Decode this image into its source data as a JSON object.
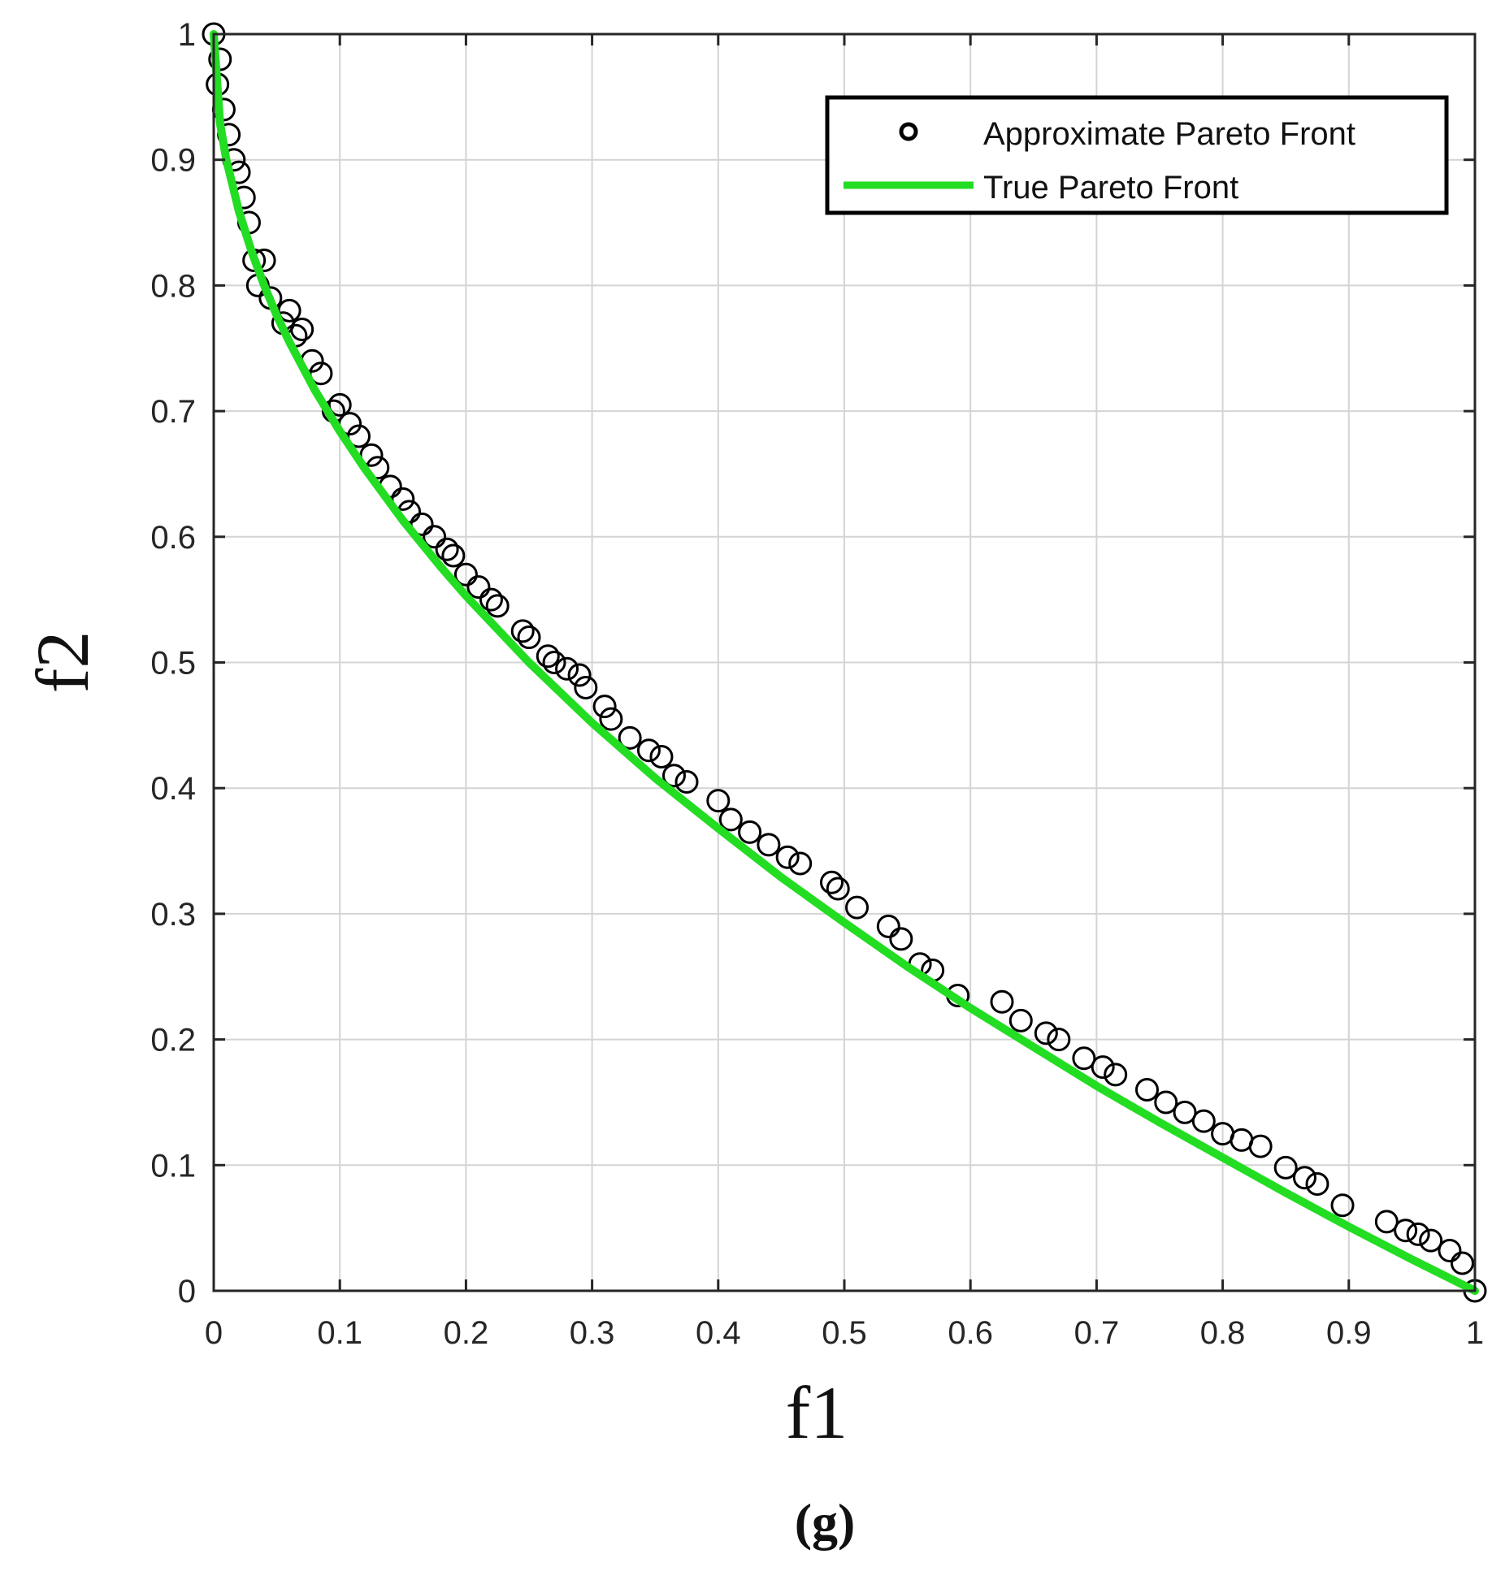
{
  "chart_data": {
    "type": "scatter",
    "title": "",
    "panel_label": "(g)",
    "xlabel": "f1",
    "ylabel": "f2",
    "xlim": [
      0,
      1
    ],
    "ylim": [
      0,
      1
    ],
    "xticks": [
      "0",
      "0.1",
      "0.2",
      "0.3",
      "0.4",
      "0.5",
      "0.6",
      "0.7",
      "0.8",
      "0.9",
      "1"
    ],
    "yticks": [
      "0",
      "0.1",
      "0.2",
      "0.3",
      "0.4",
      "0.5",
      "0.6",
      "0.7",
      "0.8",
      "0.9",
      "1"
    ],
    "grid": true,
    "legend_placement": "top-right",
    "series": [
      {
        "name": "Approximate Pareto Front",
        "kind": "scatter",
        "marker": "open-circle",
        "color": "#000000",
        "x": [
          0.0,
          0.003,
          0.005,
          0.008,
          0.012,
          0.016,
          0.02,
          0.024,
          0.028,
          0.032,
          0.035,
          0.04,
          0.045,
          0.055,
          0.06,
          0.065,
          0.07,
          0.078,
          0.085,
          0.095,
          0.1,
          0.108,
          0.115,
          0.125,
          0.13,
          0.14,
          0.15,
          0.155,
          0.165,
          0.175,
          0.185,
          0.19,
          0.2,
          0.21,
          0.22,
          0.225,
          0.245,
          0.25,
          0.265,
          0.27,
          0.28,
          0.29,
          0.295,
          0.31,
          0.315,
          0.33,
          0.345,
          0.355,
          0.365,
          0.375,
          0.4,
          0.41,
          0.425,
          0.44,
          0.455,
          0.465,
          0.49,
          0.495,
          0.51,
          0.535,
          0.545,
          0.56,
          0.57,
          0.59,
          0.625,
          0.64,
          0.66,
          0.67,
          0.69,
          0.705,
          0.715,
          0.74,
          0.755,
          0.77,
          0.785,
          0.8,
          0.815,
          0.83,
          0.85,
          0.865,
          0.875,
          0.895,
          0.93,
          0.945,
          0.955,
          0.965,
          0.98,
          0.99,
          1.0
        ],
        "y": [
          1.0,
          0.96,
          0.98,
          0.94,
          0.92,
          0.9,
          0.89,
          0.87,
          0.85,
          0.82,
          0.8,
          0.82,
          0.79,
          0.77,
          0.78,
          0.76,
          0.765,
          0.74,
          0.73,
          0.7,
          0.705,
          0.69,
          0.68,
          0.665,
          0.655,
          0.64,
          0.63,
          0.62,
          0.61,
          0.6,
          0.59,
          0.585,
          0.57,
          0.56,
          0.55,
          0.545,
          0.525,
          0.52,
          0.505,
          0.5,
          0.495,
          0.49,
          0.48,
          0.465,
          0.455,
          0.44,
          0.43,
          0.425,
          0.41,
          0.405,
          0.39,
          0.375,
          0.365,
          0.355,
          0.345,
          0.34,
          0.325,
          0.32,
          0.305,
          0.29,
          0.28,
          0.26,
          0.255,
          0.235,
          0.23,
          0.215,
          0.205,
          0.2,
          0.185,
          0.178,
          0.172,
          0.16,
          0.15,
          0.142,
          0.135,
          0.125,
          0.12,
          0.115,
          0.098,
          0.09,
          0.085,
          0.068,
          0.055,
          0.048,
          0.045,
          0.04,
          0.032,
          0.022,
          0.0
        ]
      },
      {
        "name": "True Pareto Front",
        "kind": "line",
        "color": "#22dd22",
        "x": [
          0.0,
          0.005,
          0.01,
          0.02,
          0.03,
          0.04,
          0.05,
          0.06,
          0.08,
          0.1,
          0.12,
          0.15,
          0.18,
          0.2,
          0.25,
          0.3,
          0.35,
          0.4,
          0.45,
          0.5,
          0.55,
          0.6,
          0.65,
          0.7,
          0.75,
          0.8,
          0.85,
          0.9,
          0.95,
          1.0
        ],
        "y": [
          1.0,
          0.929,
          0.9,
          0.859,
          0.827,
          0.8,
          0.776,
          0.755,
          0.717,
          0.684,
          0.654,
          0.613,
          0.576,
          0.553,
          0.5,
          0.452,
          0.408,
          0.368,
          0.329,
          0.293,
          0.258,
          0.225,
          0.194,
          0.163,
          0.134,
          0.106,
          0.078,
          0.051,
          0.025,
          0.0
        ]
      }
    ]
  }
}
